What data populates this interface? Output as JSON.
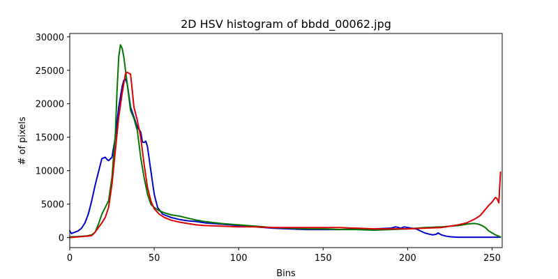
{
  "chart_data": {
    "type": "line",
    "title": "2D HSV histogram of bbdd_00062.jpg",
    "xlabel": "Bins",
    "ylabel": "# of pixels",
    "xlim": [
      0,
      256
    ],
    "ylim": [
      -1500,
      30500
    ],
    "xticks": [
      0,
      50,
      100,
      150,
      200,
      250
    ],
    "yticks": [
      0,
      5000,
      10000,
      15000,
      20000,
      25000,
      30000
    ],
    "grid": false,
    "legend": "none",
    "series": [
      {
        "color": "#0000cc",
        "points": [
          [
            0,
            1000
          ],
          [
            1,
            600
          ],
          [
            3,
            800
          ],
          [
            5,
            1000
          ],
          [
            7,
            1400
          ],
          [
            9,
            2200
          ],
          [
            11,
            3500
          ],
          [
            13,
            5500
          ],
          [
            15,
            7800
          ],
          [
            17,
            9800
          ],
          [
            19,
            11800
          ],
          [
            21,
            12000
          ],
          [
            22,
            11700
          ],
          [
            23,
            11500
          ],
          [
            25,
            12000
          ],
          [
            27,
            15000
          ],
          [
            29,
            19500
          ],
          [
            31,
            22500
          ],
          [
            32,
            23500
          ],
          [
            33,
            23700
          ],
          [
            34,
            23000
          ],
          [
            36,
            19500
          ],
          [
            38,
            18000
          ],
          [
            40,
            16500
          ],
          [
            42,
            15800
          ],
          [
            43,
            14300
          ],
          [
            44,
            14200
          ],
          [
            45,
            14400
          ],
          [
            46,
            13600
          ],
          [
            48,
            10000
          ],
          [
            50,
            6500
          ],
          [
            52,
            4500
          ],
          [
            55,
            3500
          ],
          [
            60,
            3000
          ],
          [
            65,
            2700
          ],
          [
            70,
            2500
          ],
          [
            75,
            2400
          ],
          [
            80,
            2200
          ],
          [
            90,
            2000
          ],
          [
            100,
            1800
          ],
          [
            110,
            1600
          ],
          [
            120,
            1400
          ],
          [
            130,
            1300
          ],
          [
            140,
            1200
          ],
          [
            150,
            1200
          ],
          [
            160,
            1200
          ],
          [
            170,
            1300
          ],
          [
            180,
            1300
          ],
          [
            190,
            1400
          ],
          [
            193,
            1600
          ],
          [
            196,
            1400
          ],
          [
            198,
            1600
          ],
          [
            200,
            1500
          ],
          [
            205,
            1300
          ],
          [
            210,
            700
          ],
          [
            213,
            500
          ],
          [
            215,
            400
          ],
          [
            217,
            500
          ],
          [
            218,
            700
          ],
          [
            220,
            400
          ],
          [
            223,
            200
          ],
          [
            226,
            100
          ],
          [
            230,
            50
          ],
          [
            240,
            50
          ],
          [
            250,
            50
          ],
          [
            255,
            50
          ]
        ]
      },
      {
        "color": "#007700",
        "points": [
          [
            0,
            100
          ],
          [
            5,
            150
          ],
          [
            10,
            250
          ],
          [
            13,
            400
          ],
          [
            15,
            800
          ],
          [
            17,
            2000
          ],
          [
            19,
            3500
          ],
          [
            21,
            4500
          ],
          [
            23,
            5500
          ],
          [
            25,
            9000
          ],
          [
            27,
            15500
          ],
          [
            28,
            22000
          ],
          [
            29,
            27000
          ],
          [
            30,
            28800
          ],
          [
            31,
            28300
          ],
          [
            32,
            27000
          ],
          [
            34,
            23000
          ],
          [
            36,
            19000
          ],
          [
            38,
            17800
          ],
          [
            40,
            16000
          ],
          [
            42,
            12000
          ],
          [
            44,
            9000
          ],
          [
            46,
            6500
          ],
          [
            48,
            5000
          ],
          [
            50,
            4500
          ],
          [
            53,
            4000
          ],
          [
            56,
            3700
          ],
          [
            60,
            3400
          ],
          [
            65,
            3200
          ],
          [
            70,
            2900
          ],
          [
            75,
            2600
          ],
          [
            80,
            2400
          ],
          [
            90,
            2100
          ],
          [
            100,
            1900
          ],
          [
            110,
            1700
          ],
          [
            120,
            1500
          ],
          [
            130,
            1400
          ],
          [
            140,
            1300
          ],
          [
            150,
            1300
          ],
          [
            160,
            1200
          ],
          [
            170,
            1200
          ],
          [
            180,
            1100
          ],
          [
            190,
            1200
          ],
          [
            200,
            1300
          ],
          [
            210,
            1500
          ],
          [
            220,
            1600
          ],
          [
            230,
            1800
          ],
          [
            235,
            2000
          ],
          [
            238,
            2100
          ],
          [
            240,
            2100
          ],
          [
            242,
            2000
          ],
          [
            244,
            1800
          ],
          [
            246,
            1500
          ],
          [
            248,
            1000
          ],
          [
            250,
            700
          ],
          [
            252,
            400
          ],
          [
            254,
            200
          ],
          [
            255,
            100
          ]
        ]
      },
      {
        "color": "#dd0000",
        "points": [
          [
            0,
            0
          ],
          [
            5,
            100
          ],
          [
            10,
            200
          ],
          [
            13,
            300
          ],
          [
            15,
            800
          ],
          [
            17,
            1500
          ],
          [
            19,
            2200
          ],
          [
            21,
            3000
          ],
          [
            23,
            4500
          ],
          [
            25,
            8000
          ],
          [
            27,
            13000
          ],
          [
            29,
            18000
          ],
          [
            31,
            21500
          ],
          [
            32,
            23000
          ],
          [
            33,
            24500
          ],
          [
            34,
            24700
          ],
          [
            36,
            24400
          ],
          [
            37,
            22000
          ],
          [
            38,
            19500
          ],
          [
            40,
            17500
          ],
          [
            42,
            15000
          ],
          [
            44,
            11000
          ],
          [
            46,
            7500
          ],
          [
            48,
            5500
          ],
          [
            50,
            4300
          ],
          [
            53,
            3500
          ],
          [
            56,
            3000
          ],
          [
            60,
            2600
          ],
          [
            65,
            2300
          ],
          [
            70,
            2100
          ],
          [
            75,
            1900
          ],
          [
            80,
            1800
          ],
          [
            90,
            1700
          ],
          [
            100,
            1600
          ],
          [
            110,
            1600
          ],
          [
            120,
            1500
          ],
          [
            130,
            1500
          ],
          [
            140,
            1500
          ],
          [
            150,
            1500
          ],
          [
            160,
            1500
          ],
          [
            170,
            1400
          ],
          [
            180,
            1300
          ],
          [
            190,
            1300
          ],
          [
            200,
            1300
          ],
          [
            210,
            1400
          ],
          [
            220,
            1500
          ],
          [
            225,
            1700
          ],
          [
            230,
            1900
          ],
          [
            235,
            2200
          ],
          [
            240,
            2800
          ],
          [
            243,
            3300
          ],
          [
            246,
            4200
          ],
          [
            248,
            4800
          ],
          [
            250,
            5300
          ],
          [
            252,
            6000
          ],
          [
            253,
            5800
          ],
          [
            254,
            5200
          ],
          [
            255,
            9800
          ]
        ]
      }
    ]
  }
}
